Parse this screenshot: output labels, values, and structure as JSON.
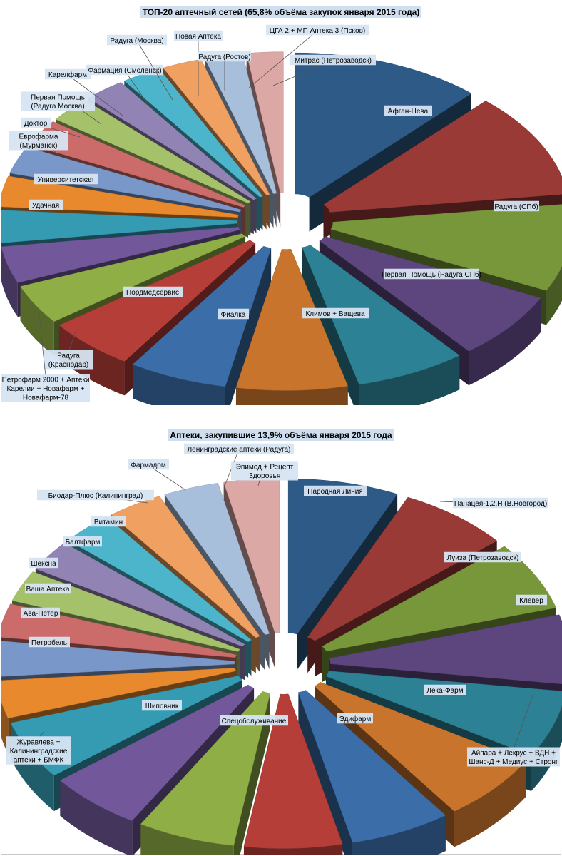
{
  "chart_data": [
    {
      "type": "pie",
      "title": "ТОП-20 аптечный сетей (65,8% объёма закупок января  2015 года)",
      "slices": [
        {
          "label": "Афган-Нева",
          "value": 11.0,
          "color": "#2d5a86"
        },
        {
          "label": "Радуга (СПб)",
          "value": 10.3,
          "color": "#9a3a36"
        },
        {
          "label": "Первая Помощь (Радуга СПб)",
          "value": 8.6,
          "color": "#78963a"
        },
        {
          "label": "Климов + Ващева",
          "value": 6.6,
          "color": "#5d467e"
        },
        {
          "label": "Фиалка",
          "value": 6.4,
          "color": "#2d8195"
        },
        {
          "label": "Нордмедсервис",
          "value": 6.4,
          "color": "#c8742c"
        },
        {
          "label": "Радуга (Краснодар)",
          "value": 5.7,
          "color": "#3b6ea9"
        },
        {
          "label": "Петрофарм 2000 + Аптеки Карелии + Новафарм + Новафарм-78",
          "value": 5.1,
          "color": "#b53e38"
        },
        {
          "label": "Удачная",
          "value": 3.9,
          "color": "#8fae46"
        },
        {
          "label": "Университетская",
          "value": 3.6,
          "color": "#72589b"
        },
        {
          "label": "Еврофарма (Мурманск)",
          "value": 3.2,
          "color": "#359bb3"
        },
        {
          "label": "Доктор",
          "value": 3.0,
          "color": "#e8892e"
        },
        {
          "label": "Первая Помощь (Радуга Москва)",
          "value": 2.7,
          "color": "#7a97c9"
        },
        {
          "label": "Карелфарм",
          "value": 2.6,
          "color": "#cc6c6a"
        },
        {
          "label": "Фармация (Смоленск)",
          "value": 2.5,
          "color": "#a5c26a"
        },
        {
          "label": "Радуга (Москва)",
          "value": 2.4,
          "color": "#9283b5"
        },
        {
          "label": "Новая Аптека",
          "value": 2.3,
          "color": "#4cb5cb"
        },
        {
          "label": "Радуга (Ростов)",
          "value": 2.3,
          "color": "#f0a060"
        },
        {
          "label": "ЦГА 2 + МП Аптека 3 (Псков)",
          "value": 2.2,
          "color": "#a8bfdc"
        },
        {
          "label": "Митрас (Петрозаводск)",
          "value": 2.1,
          "color": "#dca8a6"
        }
      ]
    },
    {
      "type": "pie",
      "title": "Аптеки, закупившие 13,9% объёма января 2015 года",
      "slices": [
        {
          "label": "Народная Линия",
          "value": 6.8,
          "color": "#2d5a86"
        },
        {
          "label": "Панацея-1,2,Н (В.Новгород)",
          "value": 6.8,
          "color": "#9a3a36"
        },
        {
          "label": "Луиза (Петрозаводск)",
          "value": 6.6,
          "color": "#78963a"
        },
        {
          "label": "Клевер",
          "value": 6.6,
          "color": "#5d467e"
        },
        {
          "label": "Айпара + Лекрус + ВДН + Шанс-Д + Медиус + Стронг",
          "value": 6.4,
          "color": "#2d8195"
        },
        {
          "label": "Лека-Фарм",
          "value": 6.4,
          "color": "#c8742c"
        },
        {
          "label": "Эдифарм",
          "value": 6.2,
          "color": "#3b6ea9"
        },
        {
          "label": "Спецобслуживание",
          "value": 6.0,
          "color": "#b53e38"
        },
        {
          "label": "Шиповник",
          "value": 6.0,
          "color": "#8fae46"
        },
        {
          "label": "Журавлева + Калининградские аптеки + БМФК",
          "value": 5.8,
          "color": "#72589b"
        },
        {
          "label": "Петробель",
          "value": 5.6,
          "color": "#359bb3"
        },
        {
          "label": "Ава-Петер",
          "value": 3.6,
          "color": "#e8892e"
        },
        {
          "label": "Ваша Аптека",
          "value": 3.4,
          "color": "#7a97c9"
        },
        {
          "label": "Шексна",
          "value": 3.2,
          "color": "#cc6c6a"
        },
        {
          "label": "Балтфарм",
          "value": 3.0,
          "color": "#a5c26a"
        },
        {
          "label": "Витамин",
          "value": 3.0,
          "color": "#9283b5"
        },
        {
          "label": "Биодар-Плюс (Калининград)",
          "value": 3.2,
          "color": "#4cb5cb"
        },
        {
          "label": "Фармадом",
          "value": 3.4,
          "color": "#f0a060"
        },
        {
          "label": "Ленинградские аптеки (Радуга)",
          "value": 3.4,
          "color": "#a8bfdc"
        },
        {
          "label": "Эпимед + Рецепт Здоровья",
          "value": 3.4,
          "color": "#dca8a6"
        }
      ]
    }
  ]
}
